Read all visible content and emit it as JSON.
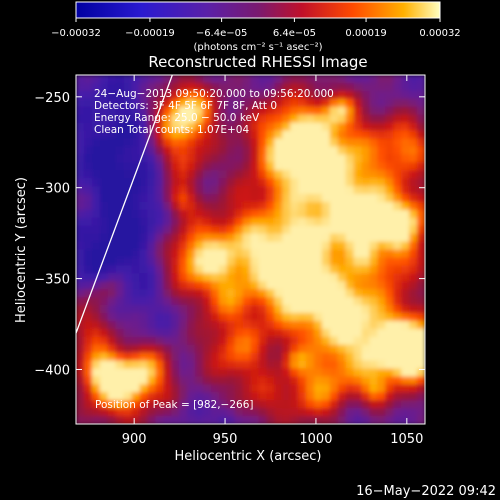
{
  "chart_data": {
    "type": "heatmap",
    "title": "Reconstructed RHESSI Image",
    "xlabel": "Heliocentric X (arcsec)",
    "ylabel": "Heliocentric Y (arcsec)",
    "xlim": [
      868,
      1060
    ],
    "ylim": [
      -430,
      -238
    ],
    "x_ticks": [
      {
        "value": 900,
        "label": "900"
      },
      {
        "value": 950,
        "label": "950"
      },
      {
        "value": 1000,
        "label": "1000"
      },
      {
        "value": 1050,
        "label": "1050"
      }
    ],
    "y_ticks": [
      {
        "value": -250,
        "label": "−250"
      },
      {
        "value": -300,
        "label": "−300"
      },
      {
        "value": -350,
        "label": "−350"
      },
      {
        "value": -400,
        "label": "−400"
      }
    ],
    "colorbar": {
      "range": [
        -0.00032,
        0.00032
      ],
      "unit_label": "(photons cm⁻² s⁻¹ asec⁻²)",
      "ticks": [
        {
          "value": -0.00032,
          "label": "−0.00032"
        },
        {
          "value": -0.00019,
          "label": "−0.00019"
        },
        {
          "value": -6.4e-05,
          "label": "−6.4e−05"
        },
        {
          "value": 6.4e-05,
          "label": "6.4e−05"
        },
        {
          "value": 0.00019,
          "label": "0.00019"
        },
        {
          "value": 0.00032,
          "label": "0.00032"
        }
      ]
    },
    "annotations": [
      "24−Aug−2013 09:50:20.000 to 09:56:20.000",
      "Detectors: 3F 4F 5F 6F 7F 8F, Att 0",
      "Energy Range: 25.0 − 50.0 keV",
      "Clean    Total counts: 1.07E+04"
    ],
    "peak_label": "Position of Peak = [982,−266]",
    "peak_position": [
      982,
      -266
    ],
    "limb_line": [
      [
        868,
        -380
      ],
      [
        921,
        -238
      ]
    ]
  },
  "timestamp": "16−May−2022 09:42"
}
